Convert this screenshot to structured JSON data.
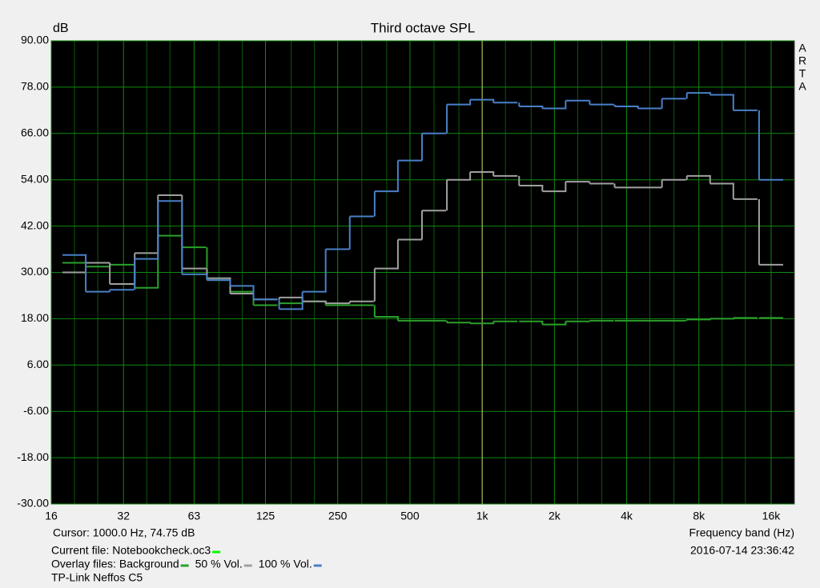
{
  "chart_data": {
    "type": "step",
    "title": "Third octave SPL",
    "y_unit": "dB",
    "x_label": "Frequency band (Hz)",
    "side_label": [
      "A",
      "R",
      "T",
      "A"
    ],
    "cursor_text": "Cursor:  1000.0 Hz, 74.75 dB",
    "cursor_x": 1000,
    "current_file": "Current file: Notebookcheck.oc3",
    "current_file_color": "#00ff00",
    "timestamp": "2016-07-14  23:36:42",
    "overlay_label": "Overlay files:",
    "footer": "TP-Link Neffos C5",
    "log_x": true,
    "grid": true,
    "xlim": [
      16,
      20000
    ],
    "ylim": [
      -30,
      90
    ],
    "xticks": [
      16,
      32,
      63,
      125,
      250,
      500,
      {
        "value": 1000,
        "label": "1k"
      },
      {
        "value": 2000,
        "label": "2k"
      },
      {
        "value": 4000,
        "label": "4k"
      },
      {
        "value": 8000,
        "label": "8k"
      },
      {
        "value": 16000,
        "label": "16k"
      }
    ],
    "x_minor_grid": [
      20,
      25,
      40,
      50,
      80,
      100,
      160,
      200,
      315,
      400,
      630,
      800,
      1250,
      1600,
      2500,
      3150,
      5000,
      6300,
      10000,
      12500
    ],
    "yticks": [
      {
        "value": 90,
        "label": "90.00"
      },
      {
        "value": 78,
        "label": "78.00"
      },
      {
        "value": 66,
        "label": "66.00"
      },
      {
        "value": 54,
        "label": "54.00"
      },
      {
        "value": 42,
        "label": "42.00"
      },
      {
        "value": 30,
        "label": "30.00"
      },
      {
        "value": 18,
        "label": "18.00"
      },
      {
        "value": 6,
        "label": "6.00"
      },
      {
        "value": -6,
        "label": "-6.00"
      },
      {
        "value": -18,
        "label": "-18.00"
      },
      {
        "value": -30,
        "label": "-30.00"
      }
    ],
    "x": [
      20,
      25,
      31.5,
      40,
      50,
      63,
      80,
      100,
      125,
      160,
      200,
      250,
      315,
      400,
      500,
      630,
      800,
      1000,
      1250,
      1600,
      2000,
      2500,
      3150,
      4000,
      5000,
      6300,
      8000,
      10000,
      12500,
      16000
    ],
    "series": [
      {
        "name": "Background",
        "color": "#2ca02c",
        "values": [
          32.5,
          31.5,
          32,
          26,
          39.5,
          36.5,
          28,
          25,
          21.5,
          22,
          22.5,
          21.5,
          21.5,
          18.5,
          17.5,
          17.5,
          17,
          16.8,
          17.3,
          17.3,
          16.5,
          17.3,
          17.5,
          17.5,
          17.5,
          17.5,
          17.8,
          18,
          18.2,
          18.2
        ]
      },
      {
        "name": "50 % Vol.",
        "color": "#a0a0a0",
        "values": [
          30,
          32.5,
          27,
          35,
          50,
          31,
          28.5,
          24.5,
          23,
          23.5,
          22.5,
          22,
          22.5,
          31,
          38.5,
          46,
          54,
          56,
          55,
          52.5,
          51,
          53.5,
          53,
          52,
          52,
          54,
          55,
          53,
          49,
          32
        ]
      },
      {
        "name": "100 % Vol.",
        "color": "#4a7fc8",
        "values": [
          34.5,
          25,
          25.5,
          33.5,
          48.5,
          29.5,
          28,
          26.5,
          23,
          20.5,
          25,
          36,
          44.5,
          51,
          59,
          66,
          73.5,
          74.75,
          74,
          73,
          72.5,
          74.5,
          73.5,
          73,
          72.5,
          75,
          76.5,
          76,
          72,
          54
        ]
      }
    ]
  }
}
